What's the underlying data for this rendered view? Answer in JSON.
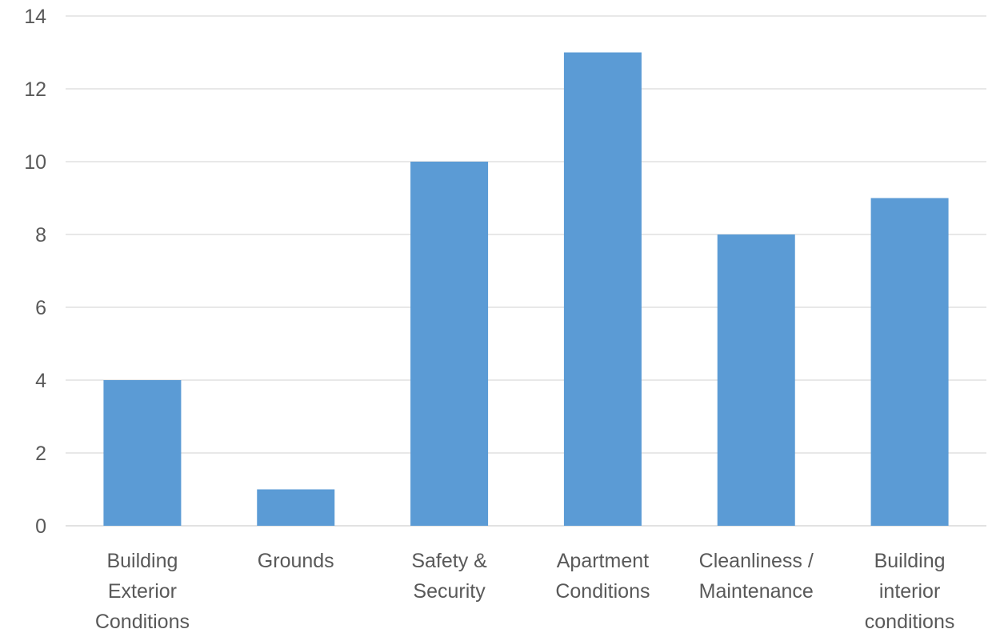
{
  "chart_data": {
    "type": "bar",
    "categories": [
      "Building Exterior Conditions",
      "Grounds",
      "Safety & Security",
      "Apartment Conditions",
      "Cleanliness / Maintenance",
      "Building interior conditions"
    ],
    "category_label_lines": [
      [
        "Building",
        "Exterior",
        "Conditions"
      ],
      [
        "Grounds"
      ],
      [
        "Safety &",
        "Security"
      ],
      [
        "Apartment",
        "Conditions"
      ],
      [
        "Cleanliness /",
        "Maintenance"
      ],
      [
        "Building",
        "interior",
        "conditions"
      ]
    ],
    "values": [
      4,
      1,
      10,
      13,
      8,
      9
    ],
    "y_ticks": [
      0,
      2,
      4,
      6,
      8,
      10,
      12,
      14
    ],
    "ylim": [
      0,
      14
    ],
    "title": "",
    "xlabel": "",
    "ylabel": "",
    "grid": true,
    "legend": "none",
    "colors": {
      "bar": "#5b9bd5",
      "grid": "#d9d9d9",
      "text": "#595959"
    }
  }
}
